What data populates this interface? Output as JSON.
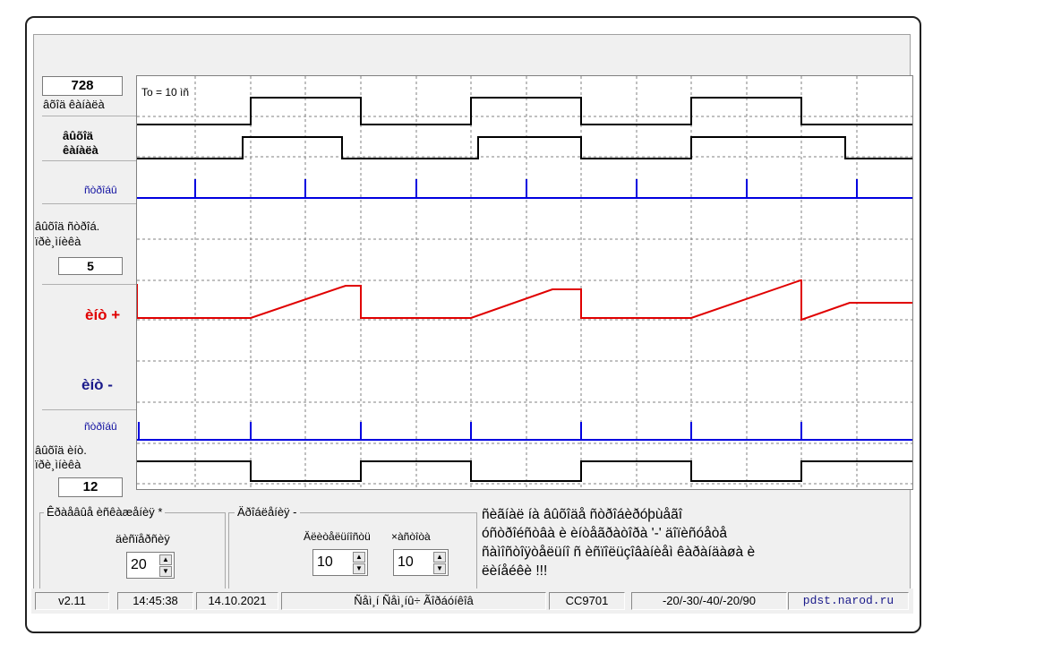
{
  "left_panel": {
    "counter_value": "728",
    "input_label": "âõîä êàíàëà",
    "output_label_line1": "âûõîä",
    "output_label_line2": "êàíàëà",
    "pulses_label_top": "ñòðîáû",
    "output_pulse_label_line1": "âûõîä ñòðîá.",
    "output_pulse_label_line2": "ïðè¸ìíèêà",
    "top_count": "5",
    "mit_plus_label": "èíò +",
    "mit_minus_label": "èíò  -",
    "pulses_label_bottom": "ñòðîáû",
    "output_int_label_line1": "âûõîä èíò.",
    "output_int_label_line2": "ïðè¸ìíèêà",
    "bottom_count": "12"
  },
  "plot": {
    "period_label": "To = 10 ìñ",
    "colors": {
      "black": "#000000",
      "blue": "#0000e0",
      "red": "#e00000",
      "grid": "#808080"
    }
  },
  "controls": {
    "group1_title": "Êðàåâûå èñêàæåíèÿ *",
    "group1_sub": "äèñïåðñèÿ",
    "group1_value": "20",
    "group2_title": "Äðîáëåíèÿ -",
    "group2_sub1": "Äëèòåëüíîñòü",
    "group2_sub2": "×àñòîòà",
    "group2_value1": "10",
    "group2_value2": "10"
  },
  "notice_text": "ñèãíàë íà âûõîäå ñòðîáèðóþùåãî\nóñòðîéñòâà è èíòåãðàòîðà '-' äîïèñóåòå\nñàìîñòîÿòåëüíî  ñ èñïîëüçîâàíèåì êàðàíäàøà è\nëèíåéêè  !!!",
  "status_bar": {
    "version": "v2.11",
    "time": "14:45:38",
    "date": "14.10.2021",
    "center_text": "Ñåì¸í  Ñåì¸íû÷  Ãîðáóíêîâ",
    "code": "CC9701",
    "levels": "-20/-30/-40/-20/90",
    "site": "pdst.narod.ru"
  }
}
